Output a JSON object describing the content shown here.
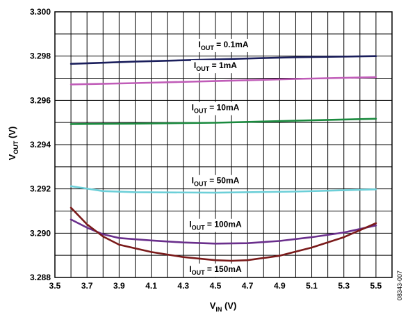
{
  "chart_data": {
    "type": "line",
    "title": "",
    "xlabel": {
      "main": "V",
      "sub": "IN",
      "unit": " (V)"
    },
    "ylabel": {
      "main": "V",
      "sub": "OUT",
      "unit": " (V)"
    },
    "xlim": [
      3.5,
      5.6
    ],
    "ylim": [
      3.288,
      3.3
    ],
    "x_ticks": [
      "3.5",
      "3.7",
      "3.9",
      "4.1",
      "4.3",
      "4.5",
      "4.7",
      "4.9",
      "5.1",
      "5.3",
      "5.5"
    ],
    "y_ticks": [
      "3.288",
      "3.290",
      "3.292",
      "3.294",
      "3.296",
      "3.298",
      "3.300"
    ],
    "grid": true,
    "legend": "none (inline labels)",
    "series": [
      {
        "name": "IOUT = 0.1mA",
        "label_main": "I",
        "label_sub": "OUT",
        "label_rest": " = 0.1mA",
        "color": "#1b1f5c",
        "points": [
          [
            3.6,
            3.29765
          ],
          [
            4.0,
            3.29775
          ],
          [
            4.5,
            3.29785
          ],
          [
            5.0,
            3.29795
          ],
          [
            5.5,
            3.298
          ]
        ]
      },
      {
        "name": "IOUT = 1mA",
        "label_main": "I",
        "label_sub": "OUT",
        "label_rest": " = 1mA",
        "color": "#c05cb8",
        "points": [
          [
            3.6,
            3.29672
          ],
          [
            4.0,
            3.29678
          ],
          [
            4.5,
            3.29687
          ],
          [
            5.0,
            3.29697
          ],
          [
            5.5,
            3.29705
          ]
        ]
      },
      {
        "name": "IOUT = 10mA",
        "label_main": "I",
        "label_sub": "OUT",
        "label_rest": " = 10mA",
        "color": "#1a8a3e",
        "points": [
          [
            3.6,
            3.29493
          ],
          [
            4.0,
            3.29495
          ],
          [
            4.5,
            3.29499
          ],
          [
            5.0,
            3.29508
          ],
          [
            5.5,
            3.29517
          ]
        ]
      },
      {
        "name": "IOUT = 50mA",
        "label_main": "I",
        "label_sub": "OUT",
        "label_rest": " = 50mA",
        "color": "#6ccfd8",
        "points": [
          [
            3.6,
            3.29212
          ],
          [
            3.8,
            3.2919
          ],
          [
            4.0,
            3.29185
          ],
          [
            4.5,
            3.29183
          ],
          [
            5.0,
            3.29188
          ],
          [
            5.5,
            3.29198
          ]
        ]
      },
      {
        "name": "IOUT = 100mA",
        "label_main": "I",
        "label_sub": "OUT",
        "label_rest": " = 100mA",
        "color": "#6a2f8c",
        "points": [
          [
            3.6,
            3.29062
          ],
          [
            3.7,
            3.29025
          ],
          [
            3.8,
            3.28995
          ],
          [
            3.9,
            3.28978
          ],
          [
            4.1,
            3.28967
          ],
          [
            4.3,
            3.28958
          ],
          [
            4.5,
            3.28953
          ],
          [
            4.7,
            3.28955
          ],
          [
            4.9,
            3.28965
          ],
          [
            5.1,
            3.28982
          ],
          [
            5.3,
            3.29003
          ],
          [
            5.5,
            3.29035
          ]
        ]
      },
      {
        "name": "IOUT = 150mA",
        "label_main": "I",
        "label_sub": "OUT",
        "label_rest": " = 150mA",
        "color": "#7a1a1a",
        "points": [
          [
            3.6,
            3.29115
          ],
          [
            3.7,
            3.2904
          ],
          [
            3.8,
            3.28985
          ],
          [
            3.9,
            3.28948
          ],
          [
            4.1,
            3.28915
          ],
          [
            4.3,
            3.28892
          ],
          [
            4.5,
            3.28878
          ],
          [
            4.6,
            3.28875
          ],
          [
            4.7,
            3.28878
          ],
          [
            4.9,
            3.28898
          ],
          [
            5.1,
            3.28935
          ],
          [
            5.3,
            3.28982
          ],
          [
            5.5,
            3.29045
          ]
        ]
      }
    ],
    "annotations": [
      "08343-007"
    ]
  }
}
